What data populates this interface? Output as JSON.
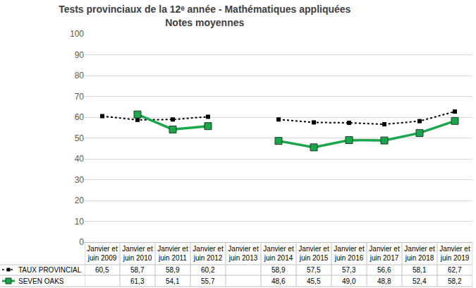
{
  "chart_data": {
    "type": "line",
    "title": "Tests provinciaux de la 12ᵉ année - Mathématiques appliquées",
    "subtitle": "Notes moyennes",
    "categories": [
      "Janvier et juin 2009",
      "Janvier et juin 2010",
      "Janvier et juin 2011",
      "Janvier et juin 2012",
      "Janvier et juin 2013",
      "Janvier et juin 2014",
      "Janvier et juin 2015",
      "Janvier et juin 2016",
      "Janvier et juin 2017",
      "Janvier et juin 2018",
      "Janvier et juin 2019"
    ],
    "series": [
      {
        "name": "TAUX PROVINCIAL",
        "color": "#000000",
        "line_style": "dotted",
        "marker": "square",
        "values": [
          60.5,
          58.7,
          58.9,
          60.2,
          null,
          58.9,
          57.5,
          57.3,
          56.6,
          58.1,
          62.7
        ],
        "value_labels": [
          "60,5",
          "58,7",
          "58,9",
          "60,2",
          null,
          "58,9",
          "57,5",
          "57,3",
          "56,6",
          "58,1",
          "62,7"
        ]
      },
      {
        "name": "SEVEN OAKS",
        "color": "#1aa64a",
        "line_style": "solid",
        "marker": "square",
        "values": [
          null,
          61.3,
          54.1,
          55.7,
          null,
          48.6,
          45.5,
          49.0,
          48.8,
          52.4,
          58.2
        ],
        "value_labels": [
          null,
          "61,3",
          "54,1",
          "55,7",
          null,
          "48,6",
          "45,5",
          "49,0",
          "48,8",
          "52,4",
          "58,2"
        ]
      }
    ],
    "ylim": [
      0,
      100
    ],
    "yticks": [
      0,
      10,
      20,
      30,
      40,
      50,
      60,
      70,
      80,
      90,
      100
    ],
    "grid": true
  }
}
